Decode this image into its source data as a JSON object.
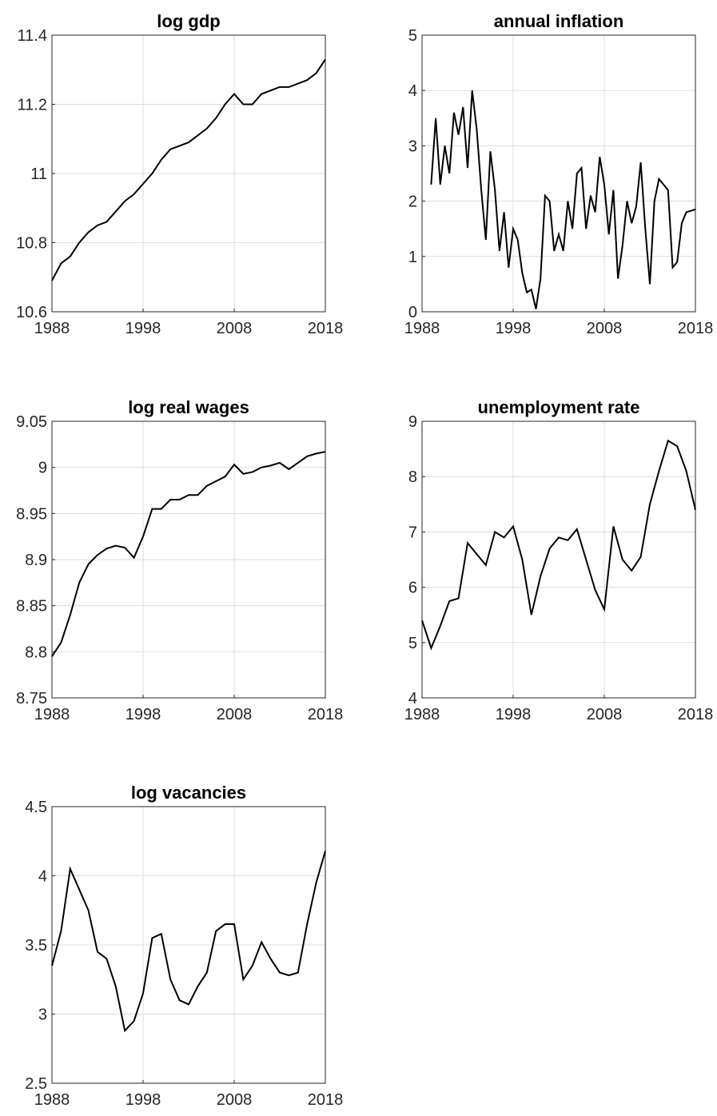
{
  "chart_data": [
    {
      "type": "line",
      "title": "log gdp",
      "color": "#000000",
      "grid": true,
      "x": [
        1988,
        1989,
        1990,
        1991,
        1992,
        1993,
        1994,
        1995,
        1996,
        1997,
        1998,
        1999,
        2000,
        2001,
        2002,
        2003,
        2004,
        2005,
        2006,
        2007,
        2008,
        2009,
        2010,
        2011,
        2012,
        2013,
        2014,
        2015,
        2016,
        2017,
        2018
      ],
      "values": [
        10.69,
        10.74,
        10.76,
        10.8,
        10.83,
        10.85,
        10.86,
        10.89,
        10.92,
        10.94,
        10.97,
        11.0,
        11.04,
        11.07,
        11.08,
        11.09,
        11.11,
        11.13,
        11.16,
        11.2,
        11.23,
        11.2,
        11.2,
        11.23,
        11.24,
        11.25,
        11.25,
        11.26,
        11.27,
        11.29,
        11.33
      ],
      "xlim": [
        1988,
        2018
      ],
      "xticks": [
        1988,
        1998,
        2008,
        2018
      ],
      "ylim": [
        10.6,
        11.4
      ],
      "yticks": [
        10.6,
        10.8,
        11,
        11.2,
        11.4
      ]
    },
    {
      "type": "line",
      "title": "annual inflation",
      "color": "#000000",
      "grid": true,
      "x": [
        1989,
        1989.5,
        1990,
        1990.5,
        1991,
        1991.5,
        1992,
        1992.5,
        1993,
        1993.5,
        1994,
        1994.5,
        1995,
        1995.5,
        1996,
        1996.5,
        1997,
        1997.5,
        1998,
        1998.5,
        1999,
        1999.5,
        2000,
        2000.5,
        2001,
        2001.5,
        2002,
        2002.5,
        2003,
        2003.5,
        2004,
        2004.5,
        2005,
        2005.5,
        2006,
        2006.5,
        2007,
        2007.5,
        2008,
        2008.5,
        2009,
        2009.5,
        2010,
        2010.5,
        2011,
        2011.5,
        2012,
        2012.5,
        2013,
        2013.5,
        2014,
        2014.5,
        2015,
        2015.5,
        2016,
        2016.5,
        2017,
        2018
      ],
      "values": [
        2.3,
        3.5,
        2.3,
        3.0,
        2.5,
        3.6,
        3.2,
        3.7,
        2.6,
        4.0,
        3.3,
        2.2,
        1.3,
        2.9,
        2.2,
        1.1,
        1.8,
        0.8,
        1.5,
        1.3,
        0.7,
        0.35,
        0.4,
        0.05,
        0.6,
        2.1,
        2.0,
        1.1,
        1.4,
        1.1,
        2.0,
        1.5,
        2.5,
        2.6,
        1.5,
        2.1,
        1.8,
        2.8,
        2.3,
        1.4,
        2.2,
        0.6,
        1.2,
        2.0,
        1.6,
        1.9,
        2.7,
        1.5,
        0.5,
        2.0,
        2.4,
        2.3,
        2.2,
        0.8,
        0.9,
        1.6,
        1.8,
        1.85
      ],
      "xlim": [
        1988,
        2018
      ],
      "xticks": [
        1988,
        1998,
        2008,
        2018
      ],
      "ylim": [
        0,
        5
      ],
      "yticks": [
        0,
        1,
        2,
        3,
        4,
        5
      ]
    },
    {
      "type": "line",
      "title": "log real wages",
      "color": "#000000",
      "grid": true,
      "x": [
        1988,
        1989,
        1990,
        1991,
        1992,
        1993,
        1994,
        1995,
        1996,
        1997,
        1998,
        1999,
        2000,
        2001,
        2002,
        2003,
        2004,
        2005,
        2006,
        2007,
        2008,
        2009,
        2010,
        2011,
        2012,
        2013,
        2014,
        2015,
        2016,
        2017,
        2018
      ],
      "values": [
        8.795,
        8.81,
        8.84,
        8.875,
        8.895,
        8.905,
        8.912,
        8.915,
        8.913,
        8.902,
        8.925,
        8.955,
        8.955,
        8.965,
        8.965,
        8.97,
        8.97,
        8.98,
        8.985,
        8.99,
        9.003,
        8.993,
        8.995,
        9.0,
        9.002,
        9.005,
        8.998,
        9.005,
        9.012,
        9.015,
        9.017
      ],
      "xlim": [
        1988,
        2018
      ],
      "xticks": [
        1988,
        1998,
        2008,
        2018
      ],
      "ylim": [
        8.75,
        9.05
      ],
      "yticks": [
        8.75,
        8.8,
        8.85,
        8.9,
        8.95,
        9,
        9.05
      ]
    },
    {
      "type": "line",
      "title": "unemployment rate",
      "color": "#000000",
      "grid": true,
      "x": [
        1988,
        1989,
        1990,
        1991,
        1992,
        1993,
        1994,
        1995,
        1996,
        1997,
        1998,
        1999,
        2000,
        2001,
        2002,
        2003,
        2004,
        2005,
        2006,
        2007,
        2008,
        2009,
        2010,
        2011,
        2012,
        2013,
        2014,
        2015,
        2016,
        2017,
        2018
      ],
      "values": [
        5.4,
        4.9,
        5.3,
        5.75,
        5.8,
        6.8,
        6.6,
        6.4,
        7.0,
        6.9,
        7.1,
        6.5,
        5.5,
        6.2,
        6.7,
        6.9,
        6.85,
        7.05,
        6.5,
        5.95,
        5.6,
        7.1,
        6.5,
        6.3,
        6.55,
        7.5,
        8.1,
        8.65,
        8.55,
        8.1,
        7.4
      ],
      "xlim": [
        1988,
        2018
      ],
      "xticks": [
        1988,
        1998,
        2008,
        2018
      ],
      "ylim": [
        4,
        9
      ],
      "yticks": [
        4,
        5,
        6,
        7,
        8,
        9
      ]
    },
    {
      "type": "line",
      "title": "log vacancies",
      "color": "#000000",
      "grid": true,
      "x": [
        1988,
        1989,
        1990,
        1991,
        1992,
        1993,
        1994,
        1995,
        1996,
        1997,
        1998,
        1999,
        2000,
        2001,
        2002,
        2003,
        2004,
        2005,
        2006,
        2007,
        2008,
        2009,
        2010,
        2011,
        2012,
        2013,
        2014,
        2015,
        2016,
        2017,
        2018
      ],
      "values": [
        3.35,
        3.6,
        4.05,
        3.9,
        3.75,
        3.45,
        3.4,
        3.2,
        2.88,
        2.95,
        3.15,
        3.55,
        3.58,
        3.25,
        3.1,
        3.07,
        3.2,
        3.3,
        3.6,
        3.65,
        3.65,
        3.25,
        3.35,
        3.52,
        3.4,
        3.3,
        3.28,
        3.3,
        3.65,
        3.95,
        4.18
      ],
      "xlim": [
        1988,
        2018
      ],
      "xticks": [
        1988,
        1998,
        2008,
        2018
      ],
      "ylim": [
        2.5,
        4.5
      ],
      "yticks": [
        2.5,
        3,
        3.5,
        4,
        4.5
      ]
    }
  ]
}
